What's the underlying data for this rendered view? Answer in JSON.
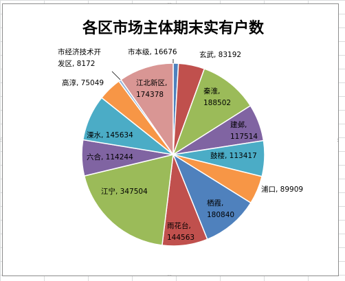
{
  "chart_data": {
    "type": "pie",
    "title": "各区市场主体期末实有户数",
    "slices": [
      {
        "name": "市本级",
        "value": 16676,
        "label": "市本级, 16676",
        "color": "#4f81bd"
      },
      {
        "name": "玄武",
        "value": 83192,
        "label": "玄武, 83192",
        "color": "#c0504d"
      },
      {
        "name": "秦淮",
        "value": 188502,
        "label": "秦淮, 188502",
        "color": "#9bbb59"
      },
      {
        "name": "建邺",
        "value": 117514,
        "label": "建邺, 117514",
        "color": "#8064a2"
      },
      {
        "name": "鼓楼",
        "value": 113417,
        "label": "鼓楼, 113417",
        "color": "#4bacc6"
      },
      {
        "name": "浦口",
        "value": 89909,
        "label": "浦口, 89909",
        "color": "#f79646"
      },
      {
        "name": "栖霞",
        "value": 180840,
        "label": "栖霞, 180840",
        "color": "#4f81bd"
      },
      {
        "name": "雨花台",
        "value": 144563,
        "label": "雨花台, 144563",
        "color": "#c0504d"
      },
      {
        "name": "江宁",
        "value": 347504,
        "label": "江宁, 347504",
        "color": "#9bbb59"
      },
      {
        "name": "六合",
        "value": 114244,
        "label": "六合, 114244",
        "color": "#8064a2"
      },
      {
        "name": "溧水",
        "value": 145634,
        "label": "溧水, 145634",
        "color": "#4bacc6"
      },
      {
        "name": "高淳",
        "value": 75049,
        "label": "高淳, 75049",
        "color": "#f79646"
      },
      {
        "name": "市经济技术开发区",
        "value": 8172,
        "label": "市经济技术开发区, 8172",
        "color": "#95b3d7"
      },
      {
        "name": "江北新区",
        "value": 174378,
        "label": "江北新区, 174378",
        "color": "#d99694"
      }
    ],
    "legend": "none"
  }
}
